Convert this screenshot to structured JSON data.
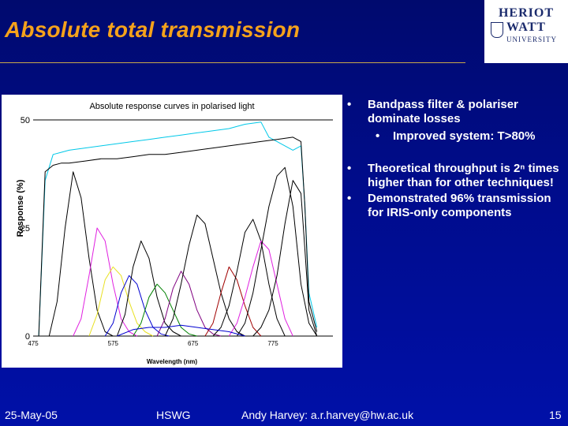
{
  "slide": {
    "title": "Absolute total transmission",
    "bullets": [
      {
        "text": "Bandpass filter & polariser dominate losses",
        "sub": [
          "Improved system: T>80%"
        ]
      },
      {
        "text": "Theoretical throughput is 2ⁿ times higher than for other techniques!",
        "sub": []
      },
      {
        "text": "Demonstrated 96% transmission for IRIS-only components",
        "sub": []
      }
    ],
    "bullet_symbol": "•"
  },
  "logo": {
    "line1": "HERIOT",
    "line2": "WATT",
    "line3": "UNIVERSITY"
  },
  "footer": {
    "date": "25-May-05",
    "org": "HSWG",
    "author": "Andy Harvey: a.r.harvey@hw.ac.uk",
    "page": "15"
  },
  "chart_data": {
    "type": "line",
    "title": "Absolute response curves in polarised light",
    "xlabel": "Wavelength (nm)",
    "ylabel": "Response (%)",
    "xlim": [
      475,
      850
    ],
    "ylim": [
      0,
      50
    ],
    "x_ticks": [
      "475",
      "575",
      "675",
      "775"
    ],
    "y_ticks": [
      "0",
      "25",
      "50"
    ],
    "grid": false,
    "series": [
      {
        "color": "#00c8e8",
        "x": [
          482,
          490,
          500,
          510,
          520,
          540,
          560,
          580,
          600,
          620,
          640,
          660,
          680,
          700,
          720,
          740,
          760,
          770,
          780,
          790,
          800,
          810,
          815,
          820,
          830
        ],
        "y": [
          0,
          36,
          42,
          42.5,
          43,
          43.5,
          44,
          44.5,
          45,
          45.5,
          46,
          46.5,
          47,
          47.5,
          48,
          49,
          49.5,
          46,
          45,
          44,
          43,
          44,
          30,
          10,
          2
        ]
      },
      {
        "color": "#000000",
        "x": [
          482,
          490,
          500,
          510,
          520,
          540,
          560,
          580,
          600,
          620,
          640,
          660,
          680,
          700,
          720,
          740,
          760,
          780,
          800,
          810,
          815,
          820,
          830
        ],
        "y": [
          0,
          38,
          39.5,
          40,
          40,
          40.5,
          41,
          41,
          41.5,
          42,
          42,
          42.5,
          43,
          43.5,
          44,
          44.5,
          45,
          45.5,
          46,
          45,
          30,
          8,
          1
        ]
      },
      {
        "color": "#000000",
        "x": [
          495,
          505,
          515,
          525,
          535,
          545,
          555,
          565,
          575
        ],
        "y": [
          0,
          8,
          25,
          38,
          32,
          18,
          6,
          1,
          0
        ]
      },
      {
        "color": "#e020e0",
        "x": [
          525,
          535,
          545,
          555,
          565,
          575,
          585,
          595,
          605
        ],
        "y": [
          0,
          4,
          14,
          25,
          22,
          12,
          4,
          1,
          0
        ]
      },
      {
        "color": "#e8e020",
        "x": [
          545,
          555,
          565,
          575,
          585,
          595,
          605,
          615,
          625
        ],
        "y": [
          0,
          5,
          13,
          16,
          14,
          8,
          3,
          1,
          0
        ]
      },
      {
        "color": "#0000d0",
        "x": [
          565,
          575,
          585,
          595,
          605,
          615,
          625,
          635,
          645
        ],
        "y": [
          0,
          3,
          10,
          14,
          12,
          6,
          2,
          0.5,
          0
        ]
      },
      {
        "color": "#000000",
        "x": [
          580,
          590,
          600,
          610,
          620,
          630,
          640,
          650,
          660
        ],
        "y": [
          0,
          5,
          16,
          22,
          18,
          9,
          3,
          1,
          0
        ]
      },
      {
        "color": "#008000",
        "x": [
          600,
          610,
          620,
          630,
          640,
          650,
          660,
          670,
          680
        ],
        "y": [
          0,
          3,
          9,
          12,
          10,
          6,
          2,
          0.5,
          0
        ]
      },
      {
        "color": "#800080",
        "x": [
          630,
          640,
          650,
          660,
          670,
          680,
          690,
          700,
          710
        ],
        "y": [
          0,
          4,
          11,
          15,
          12,
          6,
          2,
          0.5,
          0
        ]
      },
      {
        "color": "#000000",
        "x": [
          640,
          650,
          660,
          670,
          680,
          690,
          700,
          710,
          720,
          730,
          740
        ],
        "y": [
          0,
          4,
          12,
          21,
          28,
          26,
          18,
          10,
          4,
          1,
          0
        ]
      },
      {
        "color": "#a00000",
        "x": [
          690,
          700,
          710,
          720,
          730,
          740,
          750,
          760
        ],
        "y": [
          0,
          3,
          10,
          16,
          13,
          7,
          2,
          0
        ]
      },
      {
        "color": "#000000",
        "x": [
          700,
          710,
          720,
          730,
          740,
          750,
          760,
          770,
          780,
          790
        ],
        "y": [
          0,
          2,
          7,
          15,
          24,
          27,
          22,
          12,
          4,
          0
        ]
      },
      {
        "color": "#e020e0",
        "x": [
          720,
          730,
          740,
          750,
          760,
          770,
          780,
          790,
          800
        ],
        "y": [
          0,
          3,
          9,
          16,
          22,
          20,
          12,
          4,
          0
        ]
      },
      {
        "color": "#000000",
        "x": [
          730,
          740,
          750,
          760,
          770,
          780,
          790,
          800,
          810,
          820,
          830
        ],
        "y": [
          0,
          3,
          10,
          20,
          30,
          37,
          39,
          30,
          12,
          3,
          0
        ]
      },
      {
        "color": "#000000",
        "x": [
          750,
          760,
          770,
          780,
          790,
          800,
          810,
          815,
          820,
          830
        ],
        "y": [
          0,
          2,
          6,
          14,
          26,
          36,
          33,
          20,
          6,
          0
        ]
      },
      {
        "color": "#0000d0",
        "x": [
          580,
          600,
          620,
          640,
          660,
          680,
          700,
          720,
          740
        ],
        "y": [
          0,
          1.5,
          2,
          2,
          2.5,
          2,
          1.5,
          1,
          0
        ]
      }
    ]
  }
}
